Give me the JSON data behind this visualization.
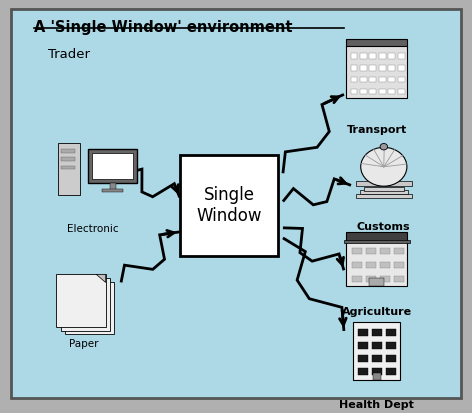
{
  "title": "A 'Single Window' environment",
  "bg_color": "#add8e6",
  "border_color": "#555555",
  "box_text": "Single\nWindow",
  "trader_label": "Trader",
  "electronic_label": "Electronic",
  "paper_label": "Paper",
  "transport_label": "Transport",
  "customs_label": "Customs",
  "agriculture_label": "Agriculture",
  "health_label": "Health Dept"
}
